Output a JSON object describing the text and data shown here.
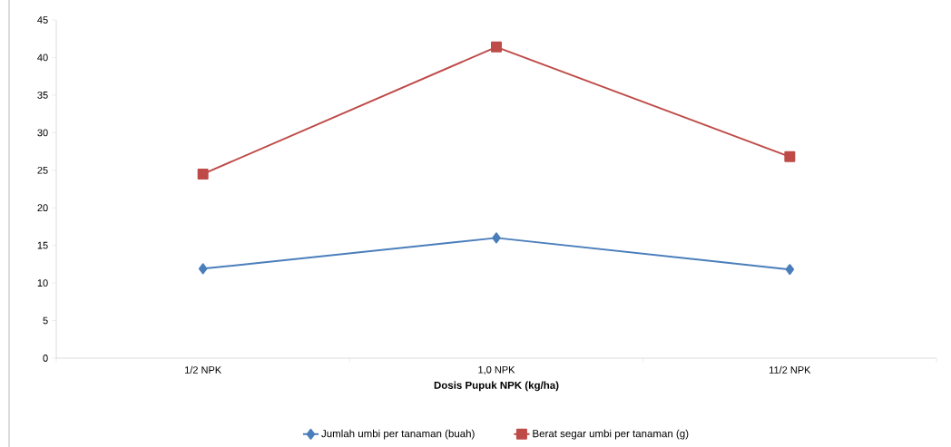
{
  "chart_data": {
    "type": "line",
    "xlabel": "Dosis Pupuk NPK (kg/ha)",
    "categories": [
      "1/2 NPK",
      "1,0 NPK",
      "11/2 NPK"
    ],
    "series": [
      {
        "name": "Jumlah umbi per tanaman (buah)",
        "color": "#4a7ebb",
        "marker": "diamond",
        "values": [
          11.9,
          16.0,
          11.8
        ]
      },
      {
        "name": "Berat segar umbi per tanaman (g)",
        "color": "#be4b48",
        "marker": "square",
        "values": [
          24.5,
          41.4,
          26.8
        ]
      }
    ],
    "ylim": [
      0,
      45
    ],
    "yticks": [
      0,
      5,
      10,
      15,
      20,
      25,
      30,
      35,
      40,
      45
    ],
    "grid": false,
    "legend": "bottom",
    "line_style": "solid"
  }
}
